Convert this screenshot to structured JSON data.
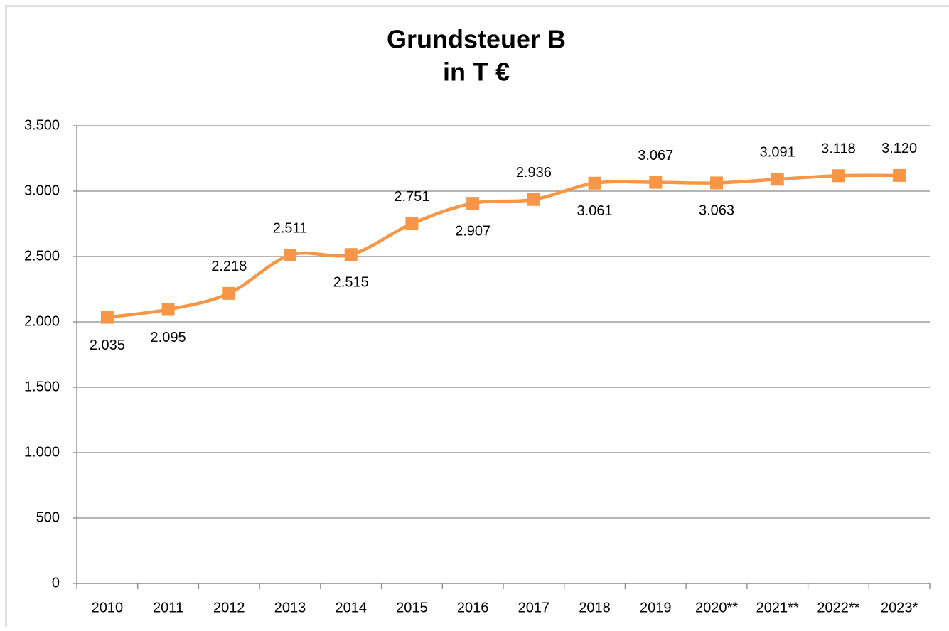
{
  "chart_data": {
    "type": "line",
    "title": "Grundsteuer B",
    "subtitle": "in T €",
    "categories": [
      "2010",
      "2011",
      "2012",
      "2013",
      "2014",
      "2015",
      "2016",
      "2017",
      "2018",
      "2019",
      "2020**",
      "2021**",
      "2022**",
      "2023*"
    ],
    "series": [
      {
        "name": "Grundsteuer B",
        "color": "#f79646",
        "values": [
          2035,
          2095,
          2218,
          2511,
          2515,
          2751,
          2907,
          2936,
          3061,
          3067,
          3063,
          3091,
          3118,
          3120
        ],
        "value_labels": [
          "2.035",
          "2.095",
          "2.218",
          "2.511",
          "2.515",
          "2.751",
          "2.907",
          "2.936",
          "3.061",
          "3.067",
          "3.063",
          "3.091",
          "3.118",
          "3.120"
        ]
      }
    ],
    "ylim": [
      0,
      3500
    ],
    "yticks": [
      0,
      500,
      {
        "value": 1000,
        "label": "1.000"
      },
      {
        "value": 1500,
        "label": "1.500"
      },
      {
        "value": 2000,
        "label": "2.000"
      },
      {
        "value": 2500,
        "label": "2.500"
      },
      {
        "value": 3000,
        "label": "3.000"
      },
      {
        "value": 3500,
        "label": "3.500"
      }
    ],
    "grid": true
  }
}
